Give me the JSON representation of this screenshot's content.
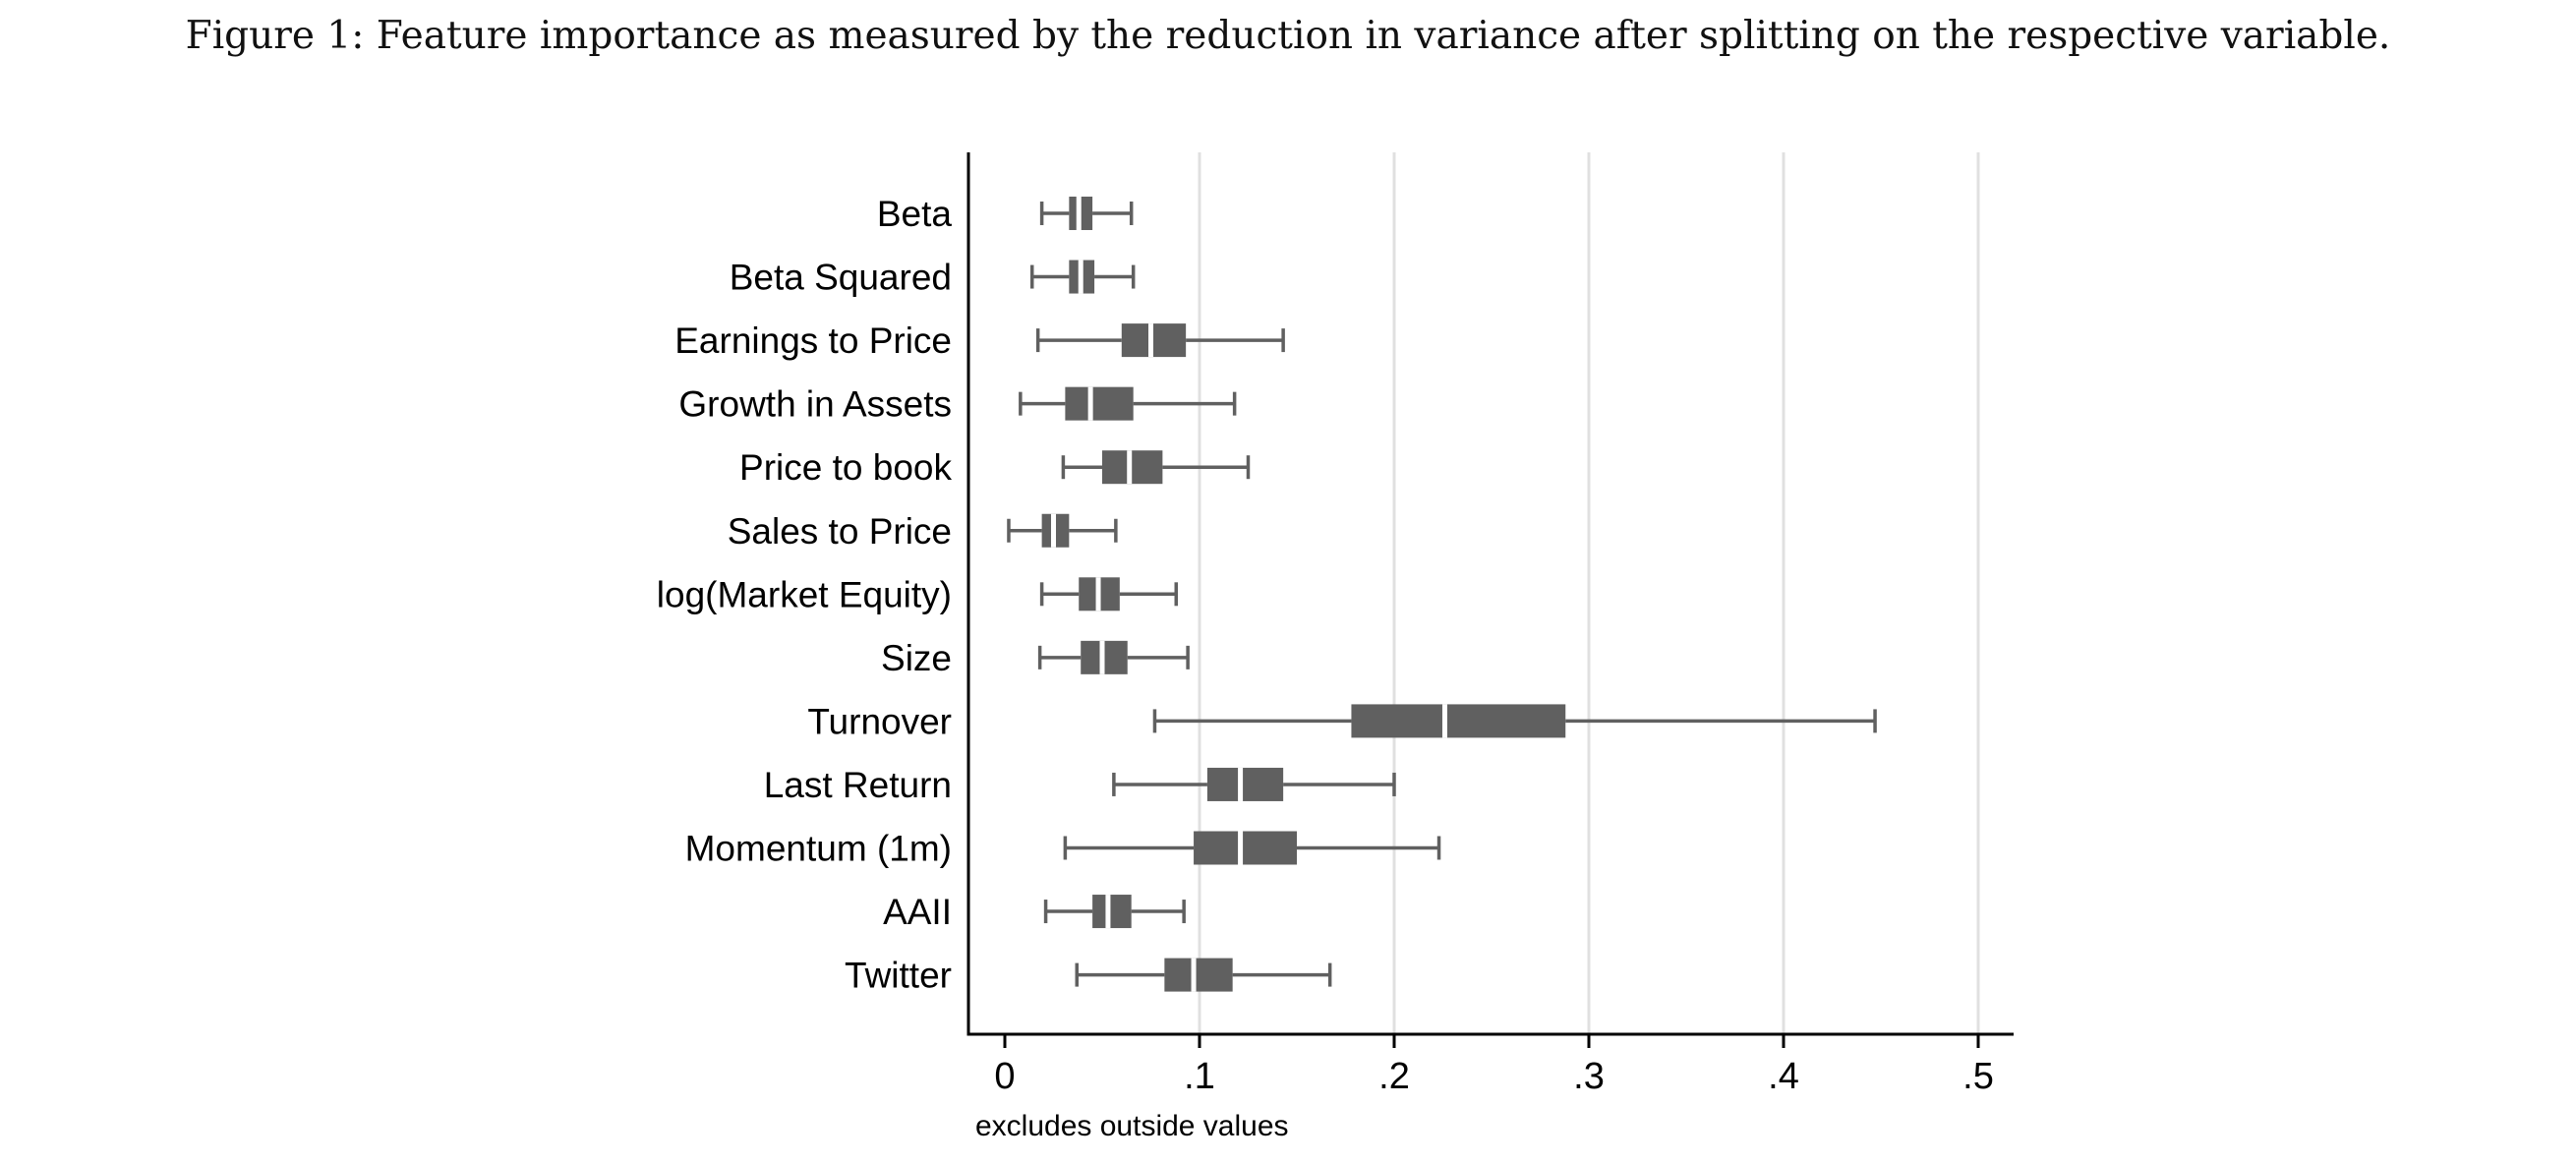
{
  "figure": {
    "caption": "Figure 1: Feature importance as measured by the reduction in variance after splitting on the respective variable."
  },
  "chart_data": {
    "type": "box",
    "orientation": "horizontal",
    "note": "excludes outside values",
    "xlim": [
      0,
      0.5
    ],
    "x_ticks": [
      {
        "value": 0,
        "label": "0"
      },
      {
        "value": 0.1,
        "label": ".1"
      },
      {
        "value": 0.2,
        "label": ".2"
      },
      {
        "value": 0.3,
        "label": ".3"
      },
      {
        "value": 0.4,
        "label": ".4"
      },
      {
        "value": 0.5,
        "label": ".5"
      }
    ],
    "grid": "vertical",
    "colors": {
      "box": "#606060",
      "whisker": "#606060",
      "grid": "#e0e0e0",
      "axis": "#000000"
    },
    "categories": [
      "Beta",
      "Beta Squared",
      "Earnings to Price",
      "Growth in Assets",
      "Price to book",
      "Sales to Price",
      "log(Market Equity)",
      "Size",
      "Turnover",
      "Last Return",
      "Momentum (1m)",
      "AAII",
      "Twitter"
    ],
    "boxes": [
      {
        "whisker_low": 0.019,
        "q1": 0.033,
        "median": 0.038,
        "q3": 0.045,
        "whisker_high": 0.065
      },
      {
        "whisker_low": 0.014,
        "q1": 0.033,
        "median": 0.039,
        "q3": 0.046,
        "whisker_high": 0.066
      },
      {
        "whisker_low": 0.017,
        "q1": 0.06,
        "median": 0.075,
        "q3": 0.093,
        "whisker_high": 0.143
      },
      {
        "whisker_low": 0.008,
        "q1": 0.031,
        "median": 0.044,
        "q3": 0.066,
        "whisker_high": 0.118
      },
      {
        "whisker_low": 0.03,
        "q1": 0.05,
        "median": 0.064,
        "q3": 0.081,
        "whisker_high": 0.125
      },
      {
        "whisker_low": 0.002,
        "q1": 0.019,
        "median": 0.025,
        "q3": 0.033,
        "whisker_high": 0.057
      },
      {
        "whisker_low": 0.019,
        "q1": 0.038,
        "median": 0.048,
        "q3": 0.059,
        "whisker_high": 0.088
      },
      {
        "whisker_low": 0.018,
        "q1": 0.039,
        "median": 0.05,
        "q3": 0.063,
        "whisker_high": 0.094
      },
      {
        "whisker_low": 0.077,
        "q1": 0.178,
        "median": 0.226,
        "q3": 0.288,
        "whisker_high": 0.447
      },
      {
        "whisker_low": 0.056,
        "q1": 0.104,
        "median": 0.121,
        "q3": 0.143,
        "whisker_high": 0.2
      },
      {
        "whisker_low": 0.031,
        "q1": 0.097,
        "median": 0.121,
        "q3": 0.15,
        "whisker_high": 0.223
      },
      {
        "whisker_low": 0.021,
        "q1": 0.045,
        "median": 0.053,
        "q3": 0.065,
        "whisker_high": 0.092
      },
      {
        "whisker_low": 0.037,
        "q1": 0.082,
        "median": 0.097,
        "q3": 0.117,
        "whisker_high": 0.167
      }
    ]
  }
}
